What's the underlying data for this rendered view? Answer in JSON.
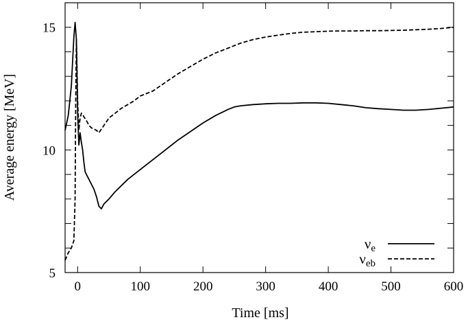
{
  "chart_data": {
    "type": "line",
    "xlabel": "Time [ms]",
    "ylabel": "Average energy [MeV]",
    "xlim": [
      -20,
      600
    ],
    "ylim": [
      5,
      16
    ],
    "x_ticks": [
      0,
      100,
      200,
      300,
      400,
      500,
      600
    ],
    "y_ticks": [
      5,
      10,
      15
    ],
    "legend_position": "bottom-right",
    "grid": false,
    "series": [
      {
        "name": "ν_e",
        "label_main": "ν",
        "label_sub": "e",
        "line_style": "solid",
        "color": "#000000",
        "x": [
          -20,
          -15,
          -10,
          -6,
          -4,
          -2,
          0,
          2,
          4,
          6,
          8,
          10,
          12,
          14,
          18,
          22,
          26,
          30,
          34,
          38,
          42,
          46,
          50,
          55,
          60,
          70,
          80,
          90,
          100,
          120,
          140,
          160,
          180,
          200,
          220,
          240,
          250,
          260,
          280,
          300,
          320,
          340,
          360,
          380,
          400,
          420,
          440,
          460,
          480,
          500,
          520,
          540,
          560,
          580,
          600
        ],
        "y": [
          10.8,
          11.4,
          12.6,
          14.6,
          15.2,
          14.5,
          11.5,
          10.2,
          10.7,
          10.3,
          10.0,
          9.5,
          9.1,
          9.0,
          8.8,
          8.6,
          8.4,
          8.1,
          7.7,
          7.6,
          7.8,
          7.9,
          8.0,
          8.15,
          8.3,
          8.55,
          8.8,
          9.0,
          9.2,
          9.6,
          10.0,
          10.4,
          10.75,
          11.1,
          11.4,
          11.65,
          11.75,
          11.8,
          11.85,
          11.88,
          11.9,
          11.9,
          11.92,
          11.92,
          11.9,
          11.85,
          11.8,
          11.72,
          11.68,
          11.65,
          11.62,
          11.62,
          11.65,
          11.7,
          11.75
        ]
      },
      {
        "name": "ν_eb",
        "label_main": "ν",
        "label_sub": "eb",
        "line_style": "dashed",
        "color": "#000000",
        "x": [
          -20,
          -15,
          -10,
          -6,
          -4,
          -3,
          -2,
          0,
          2,
          4,
          6,
          8,
          10,
          14,
          18,
          22,
          26,
          30,
          34,
          38,
          42,
          46,
          50,
          60,
          70,
          80,
          90,
          100,
          120,
          140,
          160,
          180,
          200,
          220,
          240,
          260,
          280,
          300,
          320,
          340,
          360,
          380,
          400,
          420,
          440,
          460,
          480,
          500,
          520,
          540,
          560,
          580,
          600
        ],
        "y": [
          5.5,
          5.8,
          6.0,
          6.3,
          8.0,
          12.0,
          14.5,
          12.0,
          10.8,
          11.3,
          11.5,
          11.45,
          11.35,
          11.2,
          11.0,
          10.9,
          10.85,
          10.8,
          10.7,
          10.85,
          11.0,
          11.15,
          11.3,
          11.5,
          11.7,
          11.85,
          12.0,
          12.2,
          12.4,
          12.75,
          13.1,
          13.4,
          13.7,
          13.95,
          14.15,
          14.35,
          14.5,
          14.6,
          14.68,
          14.75,
          14.8,
          14.82,
          14.84,
          14.85,
          14.85,
          14.86,
          14.86,
          14.87,
          14.88,
          14.9,
          14.92,
          14.95,
          15.0
        ]
      }
    ]
  }
}
